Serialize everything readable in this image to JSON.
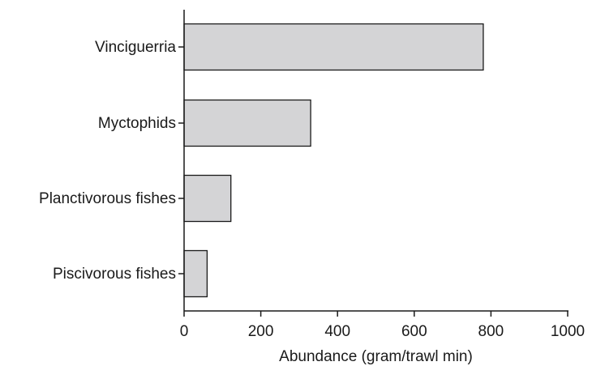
{
  "chart_data": {
    "type": "bar",
    "orientation": "horizontal",
    "categories": [
      "Vinciguerria",
      "Myctophids",
      "Planctivorous fishes",
      "Piscivorous fishes"
    ],
    "values": [
      780,
      330,
      122,
      60
    ],
    "xlabel": "Abundance (gram/trawl min)",
    "xlim": [
      0,
      1000
    ],
    "xticks": [
      0,
      200,
      400,
      600,
      800,
      1000
    ],
    "grid": false,
    "bar_color": "#d4d4d6",
    "edge_color": "#1a1a1a"
  }
}
